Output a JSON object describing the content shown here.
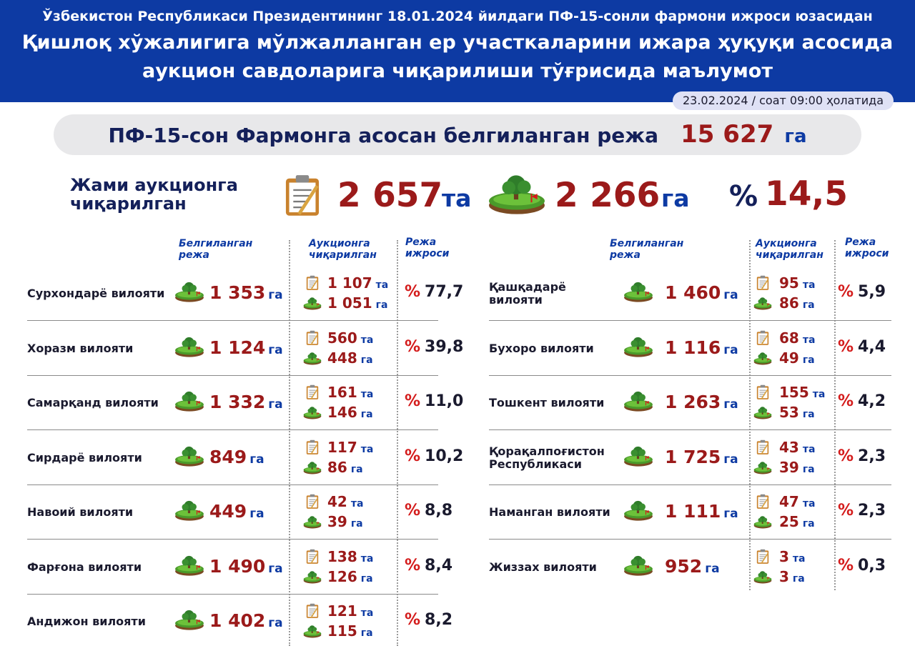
{
  "header": {
    "line1": "Ўзбекистон Республикаси Президентининг 18.01.2024 йилдаги ПФ-15-сонли фармони ижроси юзасидан",
    "line2": "Қишлоқ хўжалигига мўлжалланган ер участкаларини ижара ҳуқуқи асосида",
    "line3": "аукцион савдоларига чиқарилиши тўғрисида маълумот",
    "date": "23.02.2024 / соат 09:00 ҳолатида"
  },
  "plan": {
    "label": "ПФ-15-сон Фармонга асосан белгиланган режа",
    "value": "15 627",
    "unit": "га"
  },
  "total": {
    "label_line1": "Жами аукционга",
    "label_line2": "чиқарилган",
    "count": "2 657",
    "count_unit": "та",
    "area": "2 266",
    "area_unit": "га",
    "pct_sign": "%",
    "pct": "14,5"
  },
  "columns": {
    "plan_l1": "Белгиланган",
    "plan_l2": "режа",
    "auction_l1": "Аукционга",
    "auction_l2": "чиқарилган",
    "exec_l1": "Режа",
    "exec_l2": "ижроси"
  },
  "units": {
    "ha": "га",
    "pcs": "та",
    "pct": "%"
  },
  "icons": {
    "document": "clipboard-icon",
    "land": "land-plot-icon"
  },
  "colors": {
    "header_bg": "#0d3aa3",
    "value_red": "#9b1a1a",
    "unit_blue": "#0d3aa3",
    "pct_red": "#d41c1c"
  },
  "left_regions": [
    {
      "name_l1": "Сурхондарё вилояти",
      "name_l2": "",
      "plan": "1 353",
      "count": "1 107",
      "area": "1 051",
      "pct": "77,7"
    },
    {
      "name_l1": "Хоразм вилояти",
      "name_l2": "",
      "plan": "1 124",
      "count": "560",
      "area": "448",
      "pct": "39,8"
    },
    {
      "name_l1": "Самарқанд вилояти",
      "name_l2": "",
      "plan": "1 332",
      "count": "161",
      "area": "146",
      "pct": "11,0"
    },
    {
      "name_l1": "Сирдарё вилояти",
      "name_l2": "",
      "plan": "849",
      "count": "117",
      "area": "86",
      "pct": "10,2"
    },
    {
      "name_l1": "Навоий вилояти",
      "name_l2": "",
      "plan": "449",
      "count": "42",
      "area": "39",
      "pct": "8,8"
    },
    {
      "name_l1": "Фарғона вилояти",
      "name_l2": "",
      "plan": "1 490",
      "count": "138",
      "area": "126",
      "pct": "8,4"
    },
    {
      "name_l1": "Андижон вилояти",
      "name_l2": "",
      "plan": "1 402",
      "count": "121",
      "area": "115",
      "pct": "8,2"
    }
  ],
  "right_regions": [
    {
      "name_l1": "Қашқадарё",
      "name_l2": "вилояти",
      "plan": "1 460",
      "count": "95",
      "area": "86",
      "pct": "5,9"
    },
    {
      "name_l1": "Бухоро вилояти",
      "name_l2": "",
      "plan": "1 116",
      "count": "68",
      "area": "49",
      "pct": "4,4"
    },
    {
      "name_l1": "Тошкент вилояти",
      "name_l2": "",
      "plan": "1 263",
      "count": "155",
      "area": "53",
      "pct": "4,2"
    },
    {
      "name_l1": "Қорақалпоғистон",
      "name_l2": "Республикаси",
      "plan": "1 725",
      "count": "43",
      "area": "39",
      "pct": "2,3"
    },
    {
      "name_l1": "Наманган вилояти",
      "name_l2": "",
      "plan": "1 111",
      "count": "47",
      "area": "25",
      "pct": "2,3"
    },
    {
      "name_l1": "Жиззах вилояти",
      "name_l2": "",
      "plan": "952",
      "count": "3",
      "area": "3",
      "pct": "0,3"
    }
  ]
}
